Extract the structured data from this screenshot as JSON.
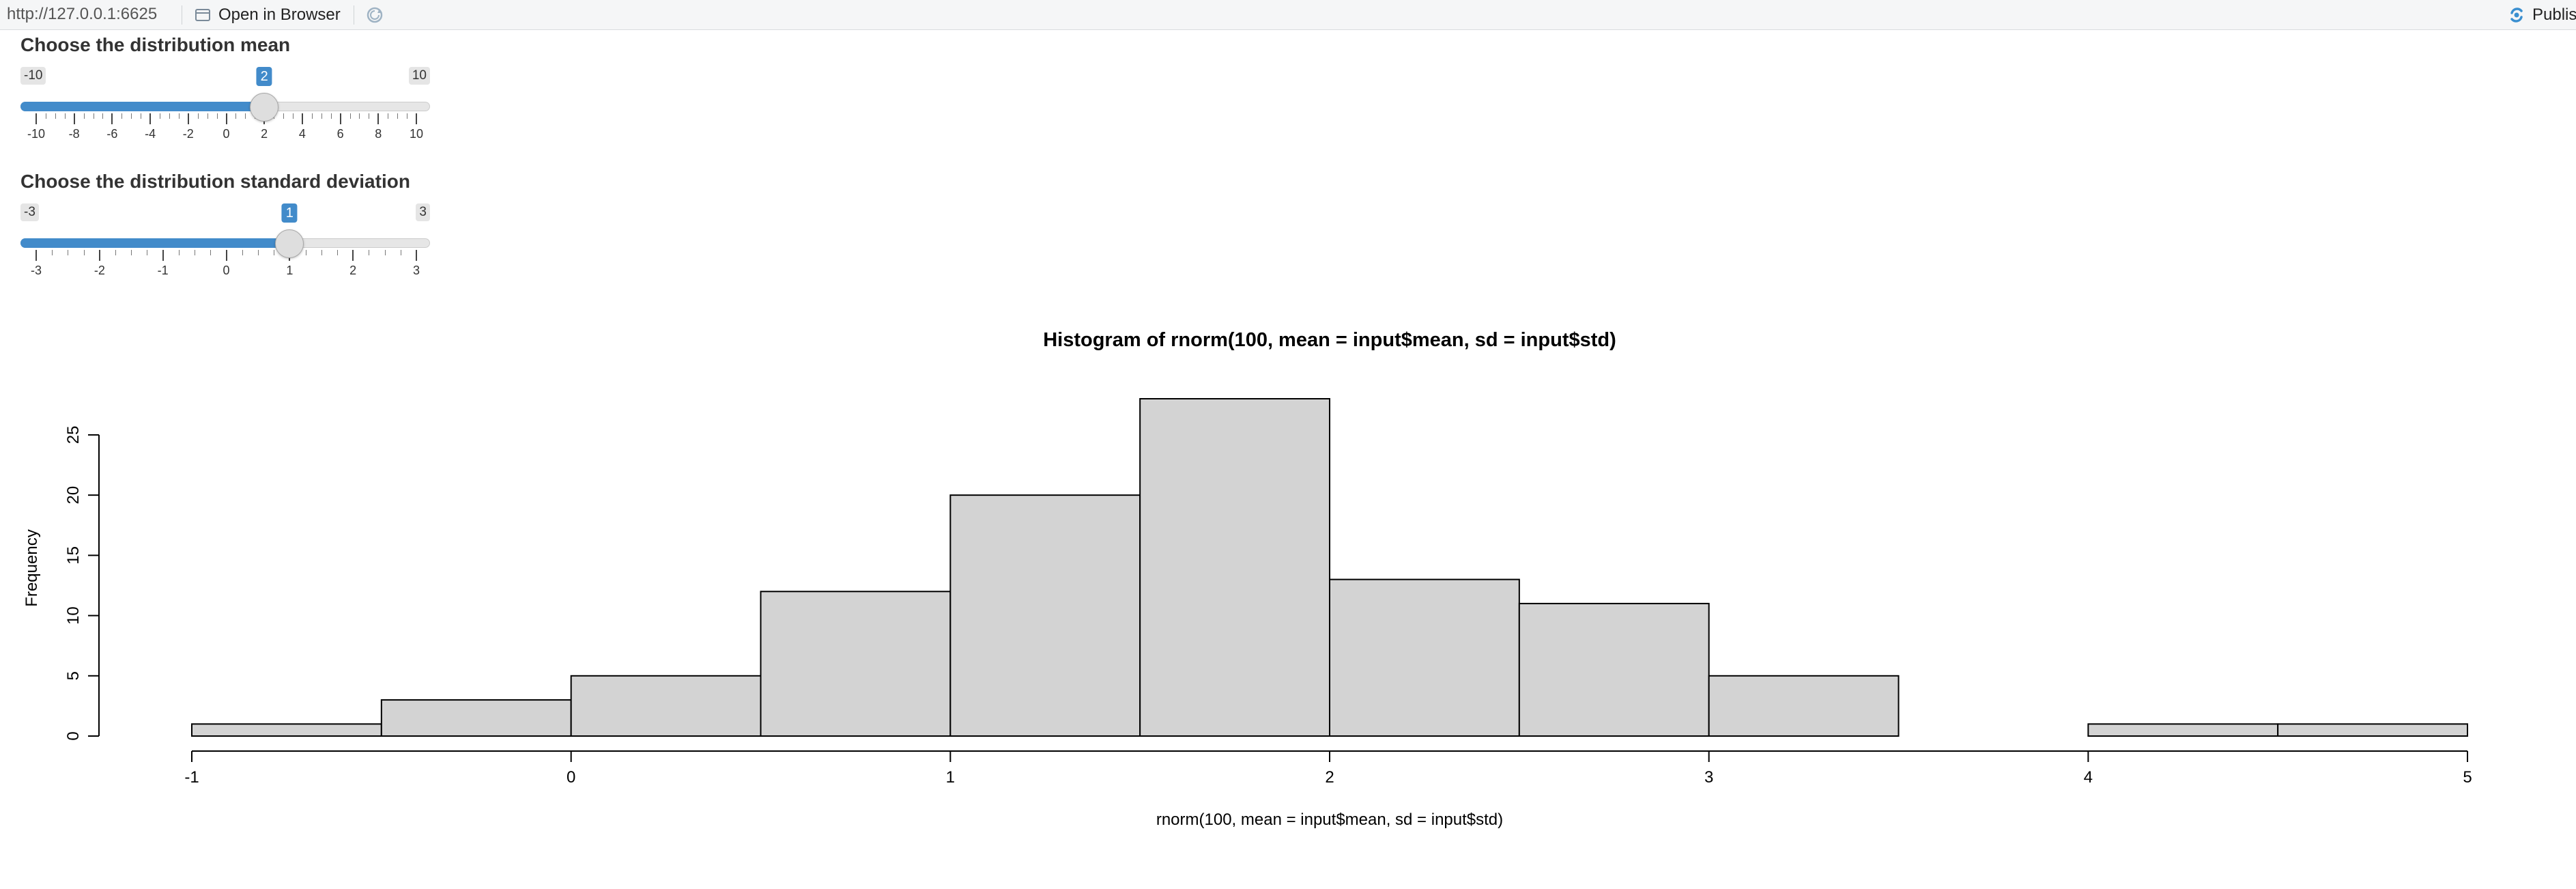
{
  "toolbar": {
    "url": "http://127.0.0.1:6625",
    "open_in_browser": "Open in Browser",
    "publish": "Publish"
  },
  "mean_slider": {
    "label": "Choose the distribution mean",
    "min": -10,
    "max": 10,
    "value": 2,
    "min_label": "-10",
    "max_label": "10",
    "value_label": "2",
    "tick_labels": [
      "-10",
      "-8",
      "-6",
      "-4",
      "-2",
      "0",
      "2",
      "4",
      "6",
      "8",
      "10"
    ]
  },
  "sd_slider": {
    "label": "Choose the distribution standard deviation",
    "min": -3,
    "max": 3,
    "value": 1,
    "min_label": "-3",
    "max_label": "3",
    "value_label": "1",
    "tick_labels": [
      "-3",
      "-2",
      "-1",
      "0",
      "1",
      "2",
      "3"
    ]
  },
  "colors": {
    "accent": "#428bca",
    "bar_fill": "#d3d3d3",
    "bar_stroke": "#000000"
  },
  "chart_data": {
    "type": "bar",
    "title": "Histogram of rnorm(100, mean = input$mean, sd = input$std)",
    "xlabel": "rnorm(100, mean = input$mean, sd = input$std)",
    "ylabel": "Frequency",
    "bins": [
      {
        "start": -1.0,
        "end": -0.5,
        "count": 1
      },
      {
        "start": -0.5,
        "end": 0.0,
        "count": 3
      },
      {
        "start": 0.0,
        "end": 0.5,
        "count": 5
      },
      {
        "start": 0.5,
        "end": 1.0,
        "count": 12
      },
      {
        "start": 1.0,
        "end": 1.5,
        "count": 20
      },
      {
        "start": 1.5,
        "end": 2.0,
        "count": 28
      },
      {
        "start": 2.0,
        "end": 2.5,
        "count": 13
      },
      {
        "start": 2.5,
        "end": 3.0,
        "count": 11
      },
      {
        "start": 3.0,
        "end": 3.5,
        "count": 5
      },
      {
        "start": 3.5,
        "end": 4.0,
        "count": 0
      },
      {
        "start": 4.0,
        "end": 4.5,
        "count": 1
      },
      {
        "start": 4.5,
        "end": 5.0,
        "count": 1
      }
    ],
    "xlim": [
      -1,
      5
    ],
    "ylim": [
      0,
      28
    ],
    "x_ticks": [
      -1,
      0,
      1,
      2,
      3,
      4,
      5
    ],
    "x_tick_labels": [
      "-1",
      "0",
      "1",
      "2",
      "3",
      "4",
      "5"
    ],
    "y_ticks": [
      0,
      5,
      10,
      15,
      20,
      25
    ],
    "y_tick_labels": [
      "0",
      "5",
      "10",
      "15",
      "20",
      "25"
    ],
    "grid": false,
    "legend": "none"
  }
}
